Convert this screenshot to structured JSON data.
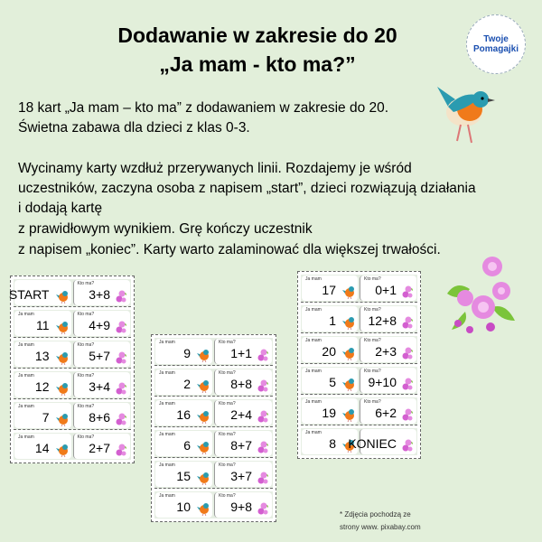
{
  "header": {
    "title_line1": "Dodawanie w zakresie do 20",
    "title_line2": "„Ja mam - kto ma?”"
  },
  "logo": {
    "text": "Twoje Pomagajki"
  },
  "description": {
    "lines": [
      "18 kart „Ja mam – kto ma” z dodawaniem w zakresie do 20.",
      "Świetna zabawa dla dzieci z klas 0-3.",
      "Wycinamy karty wzdłuż przerywanych linii. Rozdajemy je  wśród",
      "uczestników, zaczyna osoba z napisem „start”, dzieci rozwiązują działania",
      "i dodają kartę",
      "z prawidłowym wynikiem. Grę kończy uczestnik",
      "z napisem „koniec”. Karty warto zalaminować dla większej trwałości."
    ]
  },
  "labels": {
    "have": "Ja mam",
    "who": "Kto ma?"
  },
  "decks": [
    [
      {
        "have": "START",
        "who": "3+8"
      },
      {
        "have": "11",
        "who": "4+9"
      },
      {
        "have": "13",
        "who": "5+7"
      },
      {
        "have": "12",
        "who": "3+4"
      },
      {
        "have": "7",
        "who": "8+6"
      },
      {
        "have": "14",
        "who": "2+7"
      }
    ],
    [
      {
        "have": "9",
        "who": "1+1"
      },
      {
        "have": "2",
        "who": "8+8"
      },
      {
        "have": "16",
        "who": "2+4"
      },
      {
        "have": "6",
        "who": "8+7"
      },
      {
        "have": "15",
        "who": "3+7"
      },
      {
        "have": "10",
        "who": "9+8"
      }
    ],
    [
      {
        "have": "17",
        "who": "0+1"
      },
      {
        "have": "1",
        "who": "12+8"
      },
      {
        "have": "20",
        "who": "2+3"
      },
      {
        "have": "5",
        "who": "9+10"
      },
      {
        "have": "19",
        "who": "6+2"
      },
      {
        "have": "8",
        "who": "KONIEC"
      }
    ]
  ],
  "footnote": {
    "line1": "* Zdjęcia pochodzą ze",
    "line2": "strony www. pixabay.com"
  },
  "colors": {
    "background": "#e2efda",
    "bird_orange": "#f07a1a",
    "bird_blue": "#2a9bb0",
    "flower_pink": "#d35fd0"
  }
}
